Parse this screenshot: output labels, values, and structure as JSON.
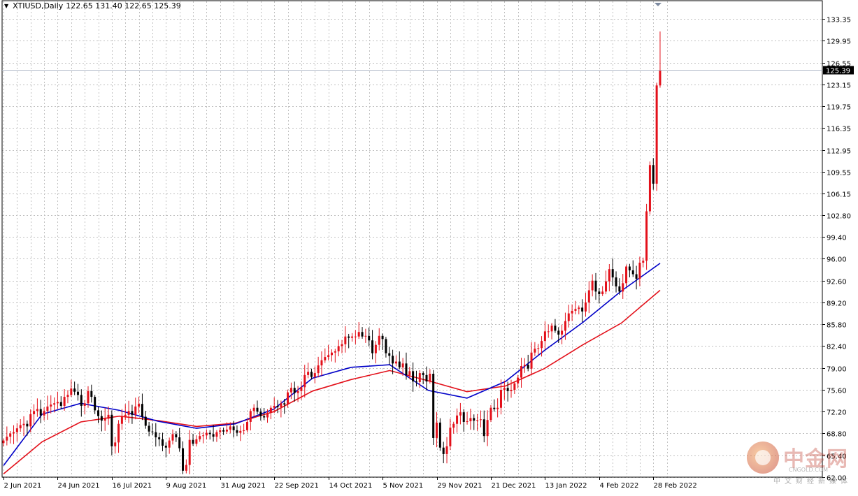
{
  "header": {
    "symbol": "XTIUSD,Daily",
    "ohlc": "122.65 131.40 122.65 125.39"
  },
  "watermark": {
    "name": "中金网",
    "url": "CNGOLD.COM",
    "subtitle": "中文财经新媒体"
  },
  "colors": {
    "up": "#e3101a",
    "down": "#000000",
    "ma_fast": "#0000c8",
    "ma_slow": "#e3101a",
    "grid": "#c0c0c0",
    "price_label_bg": "#000000"
  },
  "chart_data": {
    "type": "candlestick",
    "title": "XTIUSD,Daily",
    "last_price": 125.39,
    "ylim": [
      62.0,
      135.0
    ],
    "y_ticks": [
      62.0,
      65.4,
      68.8,
      72.2,
      75.6,
      79.0,
      82.4,
      85.8,
      89.2,
      92.6,
      96.0,
      99.4,
      102.8,
      106.15,
      109.55,
      112.95,
      116.35,
      119.75,
      123.15,
      126.55,
      129.95,
      133.35
    ],
    "y_tick_labels": [
      "62.00",
      "65.40",
      "68.80",
      "72.20",
      "75.60",
      "79.00",
      "82.40",
      "85.80",
      "89.20",
      "92.60",
      "96.00",
      "99.40",
      "102.80",
      "106.15",
      "109.55",
      "112.95",
      "116.35",
      "119.75",
      "123.15",
      "126.55",
      "129.95",
      "133.35"
    ],
    "x_labels": [
      {
        "label": "2 Jun 2021",
        "index": 0
      },
      {
        "label": "24 Jun 2021",
        "index": 16
      },
      {
        "label": "16 Jul 2021",
        "index": 32
      },
      {
        "label": "9 Aug 2021",
        "index": 48
      },
      {
        "label": "31 Aug 2021",
        "index": 64
      },
      {
        "label": "22 Sep 2021",
        "index": 80
      },
      {
        "label": "14 Oct 2021",
        "index": 96
      },
      {
        "label": "5 Nov 2021",
        "index": 112
      },
      {
        "label": "29 Nov 2021",
        "index": 128
      },
      {
        "label": "21 Dec 2021",
        "index": 144
      },
      {
        "label": "13 Jan 2022",
        "index": 160
      },
      {
        "label": "4 Feb 2022",
        "index": 176
      },
      {
        "label": "28 Feb 2022",
        "index": 192
      }
    ],
    "closes": [
      67.7,
      68.3,
      68.8,
      69.0,
      69.6,
      70.1,
      70.3,
      69.9,
      71.8,
      72.3,
      72.6,
      71.6,
      72.3,
      73.0,
      73.3,
      73.5,
      73.7,
      73.1,
      74.5,
      74.8,
      75.8,
      75.3,
      74.8,
      73.1,
      73.5,
      75.4,
      74.5,
      72.4,
      71.5,
      70.8,
      71.1,
      71.7,
      66.8,
      67.4,
      70.3,
      71.5,
      71.7,
      72.3,
      71.7,
      73.0,
      73.4,
      71.4,
      70.0,
      69.1,
      69.0,
      68.2,
      67.9,
      66.9,
      66.6,
      67.7,
      68.7,
      68.2,
      66.5,
      63.0,
      63.9,
      67.8,
      67.2,
      67.9,
      68.4,
      68.5,
      68.9,
      68.7,
      68.3,
      69.0,
      69.3,
      69.1,
      69.4,
      69.9,
      69.3,
      68.9,
      69.2,
      69.3,
      70.6,
      72.3,
      72.8,
      72.2,
      71.5,
      71.3,
      72.0,
      72.8,
      73.1,
      72.9,
      73.5,
      73.3,
      75.2,
      75.9,
      75.1,
      75.4,
      76.0,
      77.9,
      78.4,
      77.6,
      78.2,
      79.4,
      80.2,
      80.7,
      81.0,
      81.4,
      81.6,
      82.4,
      82.7,
      83.9,
      83.7,
      83.9,
      83.9,
      84.6,
      83.9,
      84.0,
      83.3,
      81.3,
      82.6,
      84.0,
      83.5,
      81.3,
      80.9,
      79.7,
      80.0,
      79.1,
      79.7,
      77.9,
      78.5,
      76.9,
      76.8,
      78.2,
      77.9,
      76.9,
      78.1,
      68.1,
      70.5,
      66.6,
      65.6,
      66.8,
      69.7,
      70.3,
      71.6,
      72.1,
      70.6,
      70.7,
      71.2,
      70.8,
      70.9,
      71.0,
      68.4,
      70.9,
      72.8,
      72.6,
      72.8,
      75.6,
      75.9,
      75.4,
      75.6,
      76.6,
      77.5,
      79.3,
      79.5,
      78.9,
      81.4,
      82.0,
      82.1,
      83.2,
      84.7,
      84.7,
      85.6,
      84.8,
      84.2,
      84.8,
      86.3,
      87.5,
      87.9,
      88.2,
      88.4,
      87.8,
      89.2,
      91.1,
      92.6,
      90.9,
      90.5,
      90.9,
      92.5,
      94.4,
      93.1,
      91.7,
      90.9,
      92.2,
      94.8,
      94.2,
      93.6,
      92.9,
      95.4,
      95.7,
      103.4,
      110.6,
      107.7,
      123.0,
      125.39
    ],
    "ma_fast": {
      "name": "",
      "values": [
        63.8,
        71.8,
        73.5,
        72.4,
        70.7,
        69.6,
        70.3,
        72.6,
        77.4,
        79.1,
        79.5,
        75.5,
        74.3,
        76.9,
        81.7,
        86.1,
        91.0,
        95.3
      ]
    },
    "ma_slow": {
      "name": "",
      "values": [
        62.5,
        67.5,
        70.6,
        71.5,
        70.8,
        69.9,
        70.4,
        72.2,
        75.4,
        77.2,
        78.6,
        77.0,
        75.3,
        76.2,
        78.9,
        82.6,
        86.0,
        91.1
      ]
    }
  }
}
